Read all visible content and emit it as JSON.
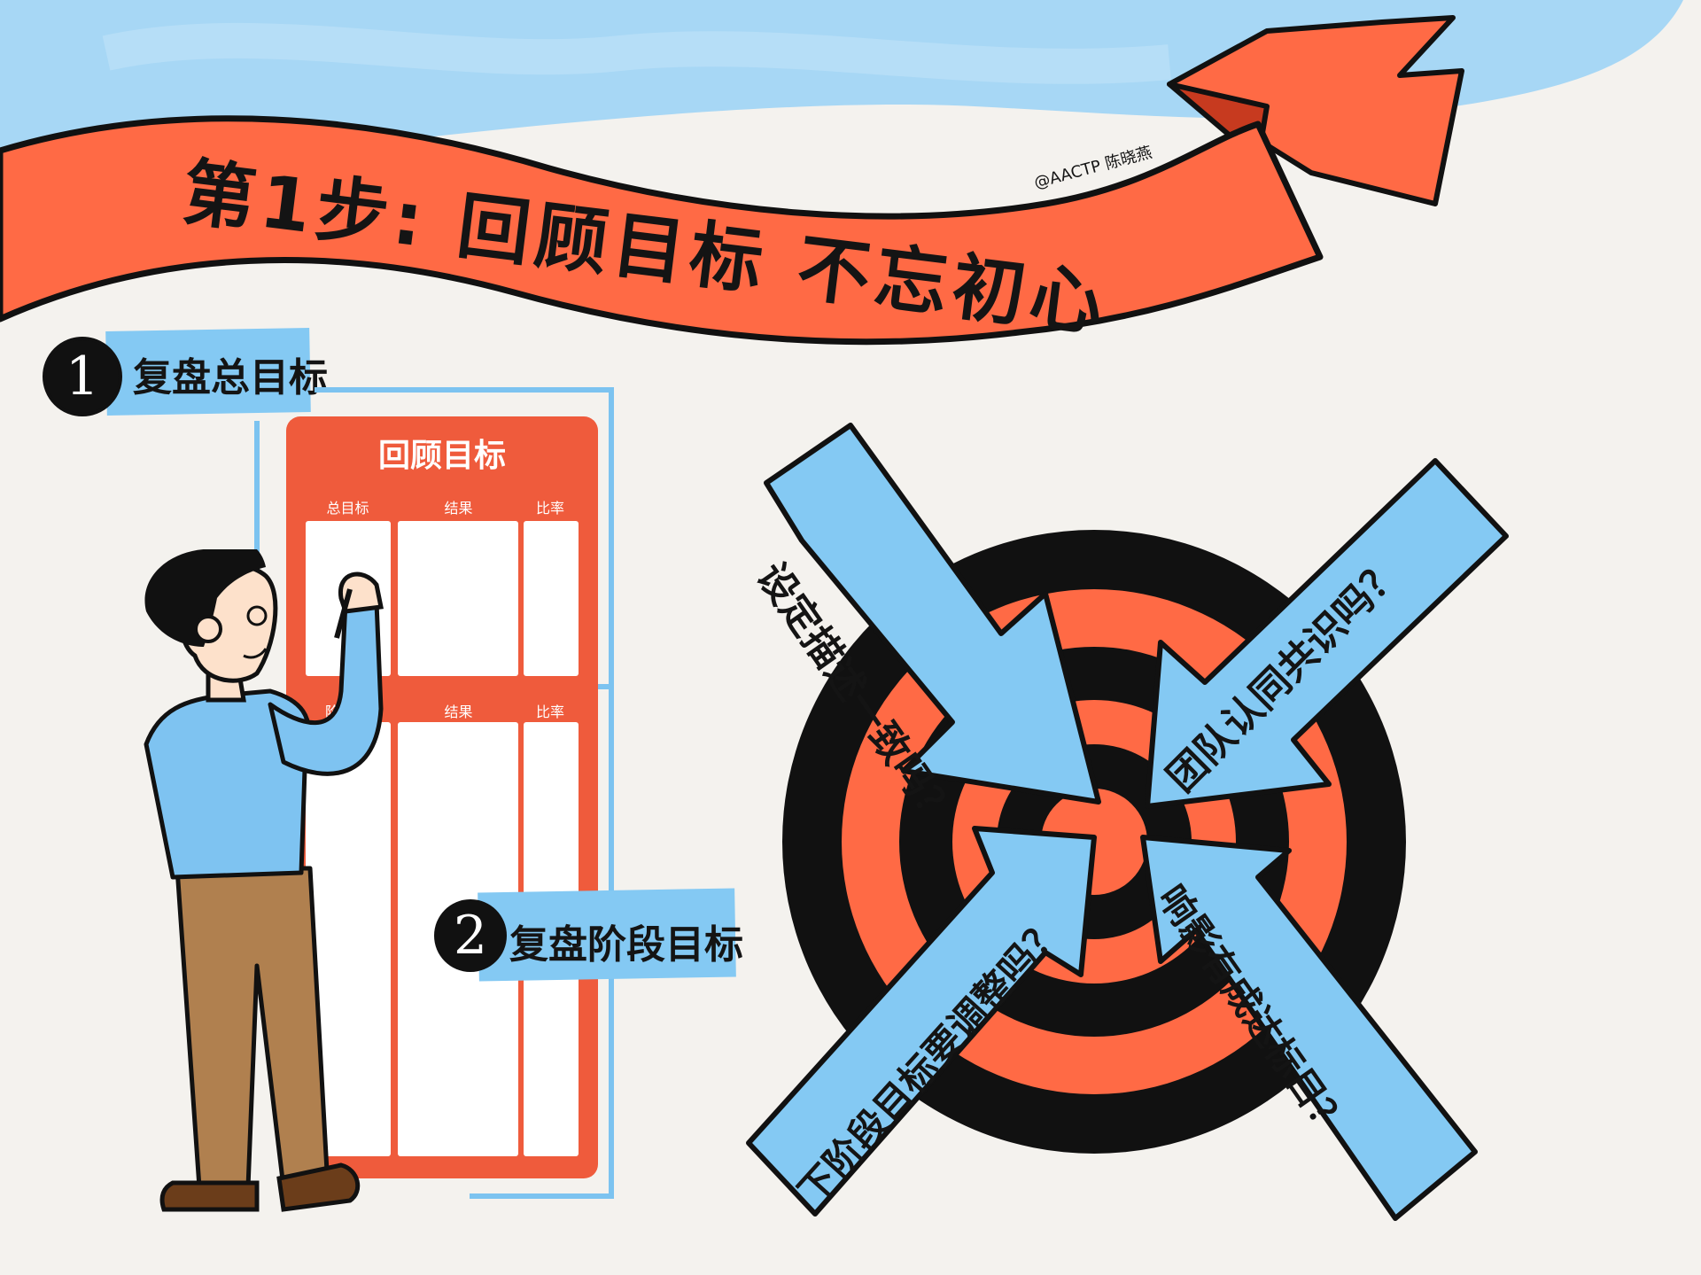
{
  "banner": {
    "title": "第1步: 回顾目标 不忘初心",
    "signature": "@AACTP 陈晓燕"
  },
  "steps": [
    {
      "number": "1",
      "label": "复盘总目标"
    },
    {
      "number": "2",
      "label": "复盘阶段目标"
    }
  ],
  "board": {
    "title": "回顾目标",
    "top_headers": [
      "总目标",
      "结果",
      "比率"
    ],
    "bottom_headers": [
      "阶",
      "结果",
      "比率"
    ]
  },
  "arrows": {
    "top_left": "设定描述一致吗？",
    "top_right": "团队认同共识吗？",
    "bottom_left": "下阶段目标要调整吗？",
    "bottom_right": "响影有成达标目？"
  },
  "colors": {
    "sky": "#9fd4f5",
    "ribbon": "#ff6a45",
    "board": "#ef5b3c",
    "arrow": "#84c9f3",
    "ink": "#111111"
  }
}
